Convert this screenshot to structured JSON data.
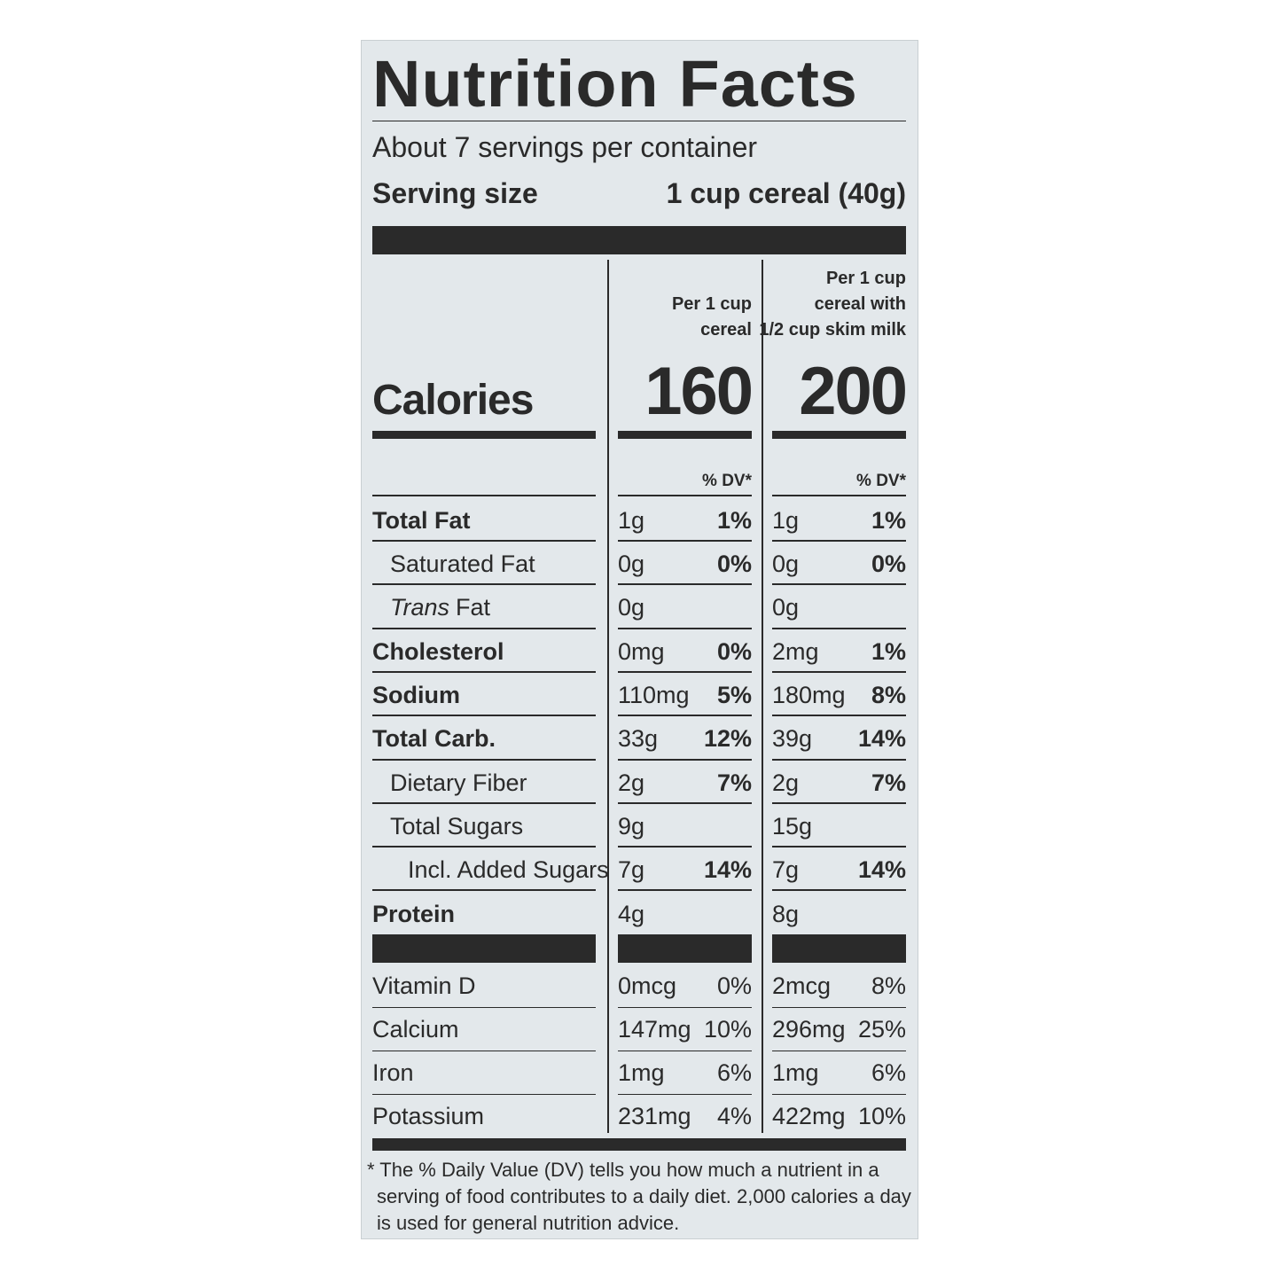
{
  "title": "Nutrition Facts",
  "servings": "About 7 servings per container",
  "serving_size": {
    "label": "Serving size",
    "value": "1 cup cereal (40g)"
  },
  "columns": [
    {
      "header": [
        "Per 1 cup",
        "cereal"
      ],
      "calories": "160",
      "dv_header": "% DV*"
    },
    {
      "header": [
        "Per 1 cup",
        "cereal with",
        "1/2 cup skim milk"
      ],
      "calories": "200",
      "dv_header": "% DV*"
    }
  ],
  "calories_label": "Calories",
  "nutrients": [
    {
      "name": [
        "Total Fat"
      ],
      "bold": true,
      "indent": 0,
      "amounts": [
        "1g",
        "1g"
      ],
      "dv": [
        "1%",
        "1%"
      ]
    },
    {
      "name": [
        "Saturated Fat"
      ],
      "bold": false,
      "indent": 1,
      "amounts": [
        "0g",
        "0g"
      ],
      "dv": [
        "0%",
        "0%"
      ]
    },
    {
      "name": [
        "Trans",
        "Fat"
      ],
      "bold": false,
      "indent": 1,
      "amounts": [
        "0g",
        "0g"
      ],
      "dv": [
        null,
        null
      ]
    },
    {
      "name": [
        "Cholesterol"
      ],
      "bold": true,
      "indent": 0,
      "amounts": [
        "0mg",
        "2mg"
      ],
      "dv": [
        "0%",
        "1%"
      ]
    },
    {
      "name": [
        "Sodium"
      ],
      "bold": true,
      "indent": 0,
      "amounts": [
        "110mg",
        "180mg"
      ],
      "dv": [
        "5%",
        "8%"
      ]
    },
    {
      "name": [
        "Total Carb."
      ],
      "bold": true,
      "indent": 0,
      "amounts": [
        "33g",
        "39g"
      ],
      "dv": [
        "12%",
        "14%"
      ]
    },
    {
      "name": [
        "Dietary Fiber"
      ],
      "bold": false,
      "indent": 1,
      "amounts": [
        "2g",
        "2g"
      ],
      "dv": [
        "7%",
        "7%"
      ]
    },
    {
      "name": [
        "Total Sugars"
      ],
      "bold": false,
      "indent": 1,
      "amounts": [
        "9g",
        "15g"
      ],
      "dv": [
        null,
        null
      ]
    },
    {
      "name": [
        "Incl. Added Sugars"
      ],
      "bold": false,
      "indent": 2,
      "amounts": [
        "7g",
        "7g"
      ],
      "dv": [
        "14%",
        "14%"
      ]
    },
    {
      "name": [
        "Protein"
      ],
      "bold": true,
      "indent": 0,
      "amounts": [
        "4g",
        "8g"
      ],
      "dv": [
        null,
        null
      ]
    }
  ],
  "vitamins": [
    {
      "name": "Vitamin D",
      "amounts": [
        "0mcg",
        "2mcg"
      ],
      "dv": [
        "0%",
        "8%"
      ]
    },
    {
      "name": "Calcium",
      "amounts": [
        "147mg",
        "296mg"
      ],
      "dv": [
        "10%",
        "25%"
      ]
    },
    {
      "name": "Iron",
      "amounts": [
        "1mg",
        "1mg"
      ],
      "dv": [
        "6%",
        "6%"
      ]
    },
    {
      "name": "Potassium",
      "amounts": [
        "231mg",
        "422mg"
      ],
      "dv": [
        "4%",
        "10%"
      ]
    }
  ],
  "footnote": [
    "* The % Daily Value (DV) tells you how much a nutrient in a",
    "serving of food contributes to a daily diet. 2,000 calories a day",
    "is used for general nutrition advice."
  ]
}
